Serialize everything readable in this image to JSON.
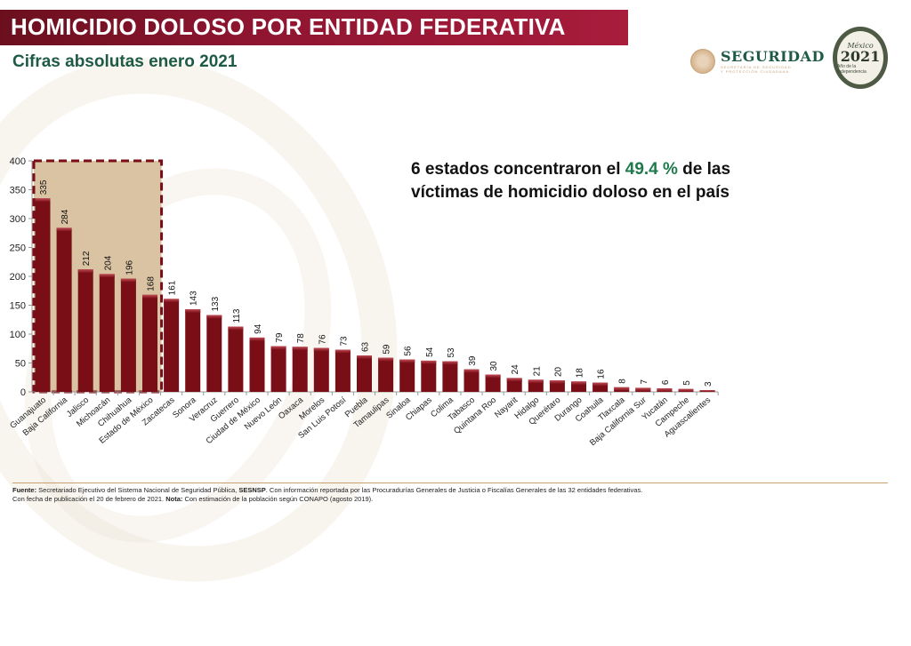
{
  "header": {
    "title": "HOMICIDIO DOLOSO POR ENTIDAD FEDERATIVA",
    "subtitle": "Cifras absolutas enero 2021"
  },
  "logos": {
    "seguridad": {
      "title": "SEGURIDAD",
      "subtitle_line1": "SECRETARÍA DE SEGURIDAD",
      "subtitle_line2": "Y PROTECCIÓN CIUDADANA"
    },
    "anniversary": {
      "line1": "México",
      "line2": "2021",
      "line3": "Año de la Independencia"
    }
  },
  "annotation": {
    "line1_pre": "6 estados concentraron el ",
    "highlight": "49.4 %",
    "line1_post": " de las",
    "line2": "víctimas de homicidio doloso en el país"
  },
  "colors": {
    "bar": "#7a0e16",
    "highlight_box": "#d9c3a3",
    "highlight_border": "#7a0e16",
    "title_bg": "#8e1530",
    "accent_green": "#1e7a4a"
  },
  "chart_data": {
    "type": "bar",
    "title": "HOMICIDIO DOLOSO POR ENTIDAD FEDERATIVA",
    "subtitle": "Cifras absolutas enero 2021",
    "xlabel": "",
    "ylabel": "",
    "ylim": [
      0,
      400
    ],
    "yticks": [
      0,
      50,
      100,
      150,
      200,
      250,
      300,
      350,
      400
    ],
    "grid": false,
    "highlighted_count": 6,
    "categories": [
      "Guanajuato",
      "Baja California",
      "Jalisco",
      "Michoacán",
      "Chihuahua",
      "Estado de México",
      "Zacatecas",
      "Sonora",
      "Veracruz",
      "Guerrero",
      "Ciudad de México",
      "Nuevo León",
      "Oaxaca",
      "Morelos",
      "San Luis Potosí",
      "Puebla",
      "Tamaulipas",
      "Sinaloa",
      "Chiapas",
      "Colima",
      "Tabasco",
      "Quintana Roo",
      "Nayarit",
      "Hidalgo",
      "Querétaro",
      "Durango",
      "Coahuila",
      "Tlaxcala",
      "Baja California Sur",
      "Yucatán",
      "Campeche",
      "Aguascalientes"
    ],
    "values": [
      335,
      284,
      212,
      204,
      196,
      168,
      161,
      143,
      133,
      113,
      94,
      79,
      78,
      76,
      73,
      63,
      59,
      56,
      54,
      53,
      39,
      30,
      24,
      21,
      20,
      18,
      16,
      8,
      7,
      6,
      5,
      3
    ]
  },
  "footer": {
    "fuente_label": "Fuente:",
    "fuente_text": " Secretariado Ejecutivo del Sistema Nacional de Seguridad Pública, ",
    "sesnsp": "SESNSP",
    "fuente_rest": ". Con información reportada por las Procuradurías Generales de Justicia o Fiscalías Generales de las 32 entidades federativas.",
    "line2_pre": "Con fecha de publicación el 20 de febrero de 2021. ",
    "nota_label": "Nota:",
    "nota_text": " Con estimación de la población según CONAPO (agosto 2019)."
  }
}
